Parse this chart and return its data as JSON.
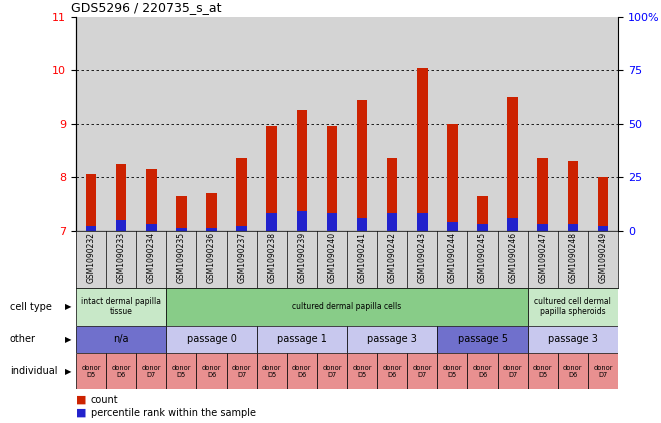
{
  "title": "GDS5296 / 220735_s_at",
  "samples": [
    "GSM1090232",
    "GSM1090233",
    "GSM1090234",
    "GSM1090235",
    "GSM1090236",
    "GSM1090237",
    "GSM1090238",
    "GSM1090239",
    "GSM1090240",
    "GSM1090241",
    "GSM1090242",
    "GSM1090243",
    "GSM1090244",
    "GSM1090245",
    "GSM1090246",
    "GSM1090247",
    "GSM1090248",
    "GSM1090249"
  ],
  "count_values": [
    8.05,
    8.25,
    8.15,
    7.65,
    7.7,
    8.35,
    8.95,
    9.25,
    8.95,
    9.45,
    8.35,
    10.05,
    9.0,
    7.65,
    9.5,
    8.35,
    8.3,
    8.0
  ],
  "percentile_values": [
    2,
    5,
    3,
    1,
    1,
    2,
    8,
    9,
    8,
    6,
    8,
    8,
    4,
    3,
    6,
    3,
    3,
    2
  ],
  "ylim": [
    7,
    11
  ],
  "yticks": [
    7,
    8,
    9,
    10,
    11
  ],
  "right_yticks": [
    0,
    25,
    50,
    75,
    100
  ],
  "right_yticklabels": [
    "0",
    "25",
    "50",
    "75",
    "100%"
  ],
  "bar_color_red": "#cc2200",
  "bar_color_blue": "#2222cc",
  "bar_width": 0.35,
  "cell_type_row": {
    "groups": [
      {
        "label": "intact dermal papilla\ntissue",
        "start": 0,
        "end": 3,
        "color": "#c8e8c8"
      },
      {
        "label": "cultured dermal papilla cells",
        "start": 3,
        "end": 15,
        "color": "#88cc88"
      },
      {
        "label": "cultured cell dermal\npapilla spheroids",
        "start": 15,
        "end": 18,
        "color": "#c8e8c8"
      }
    ]
  },
  "other_row": {
    "groups": [
      {
        "label": "n/a",
        "start": 0,
        "end": 3,
        "color": "#7070cc"
      },
      {
        "label": "passage 0",
        "start": 3,
        "end": 6,
        "color": "#c8c8ee"
      },
      {
        "label": "passage 1",
        "start": 6,
        "end": 9,
        "color": "#c8c8ee"
      },
      {
        "label": "passage 3",
        "start": 9,
        "end": 12,
        "color": "#c8c8ee"
      },
      {
        "label": "passage 5",
        "start": 12,
        "end": 15,
        "color": "#7070cc"
      },
      {
        "label": "passage 3",
        "start": 15,
        "end": 18,
        "color": "#c8c8ee"
      }
    ]
  },
  "individual_row": {
    "donors": [
      "donor\nD5",
      "donor\nD6",
      "donor\nD7",
      "donor\nD5",
      "donor\nD6",
      "donor\nD7",
      "donor\nD5",
      "donor\nD6",
      "donor\nD7",
      "donor\nD5",
      "donor\nD6",
      "donor\nD7",
      "donor\nD5",
      "donor\nD6",
      "donor\nD7",
      "donor\nD5",
      "donor\nD6",
      "donor\nD7"
    ],
    "color": "#e89090"
  },
  "row_labels": [
    "cell type",
    "other",
    "individual"
  ],
  "legend": [
    {
      "color": "#cc2200",
      "label": "count"
    },
    {
      "color": "#2222cc",
      "label": "percentile rank within the sample"
    }
  ]
}
